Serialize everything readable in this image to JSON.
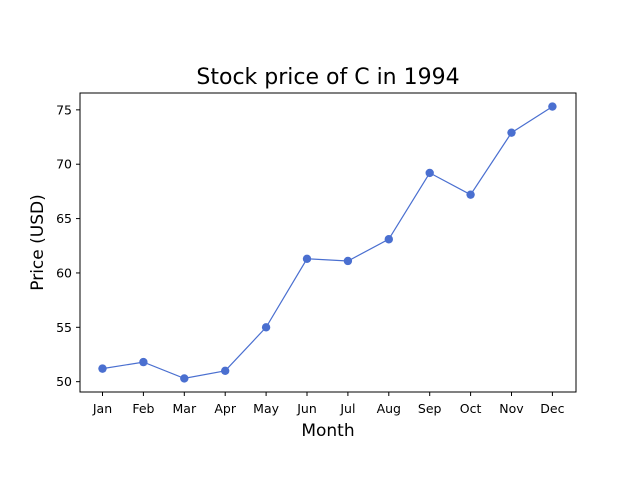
{
  "chart_data": {
    "type": "line",
    "title": "Stock price of C in 1994",
    "xlabel": "Month",
    "ylabel": "Price (USD)",
    "categories": [
      "Jan",
      "Feb",
      "Mar",
      "Apr",
      "May",
      "Jun",
      "Jul",
      "Aug",
      "Sep",
      "Oct",
      "Nov",
      "Dec"
    ],
    "series": [
      {
        "values": [
          51.2,
          51.8,
          50.3,
          51.0,
          55.0,
          61.3,
          61.1,
          63.1,
          69.2,
          67.2,
          72.9,
          75.3
        ]
      }
    ],
    "yticks": [
      50,
      55,
      60,
      65,
      70,
      75
    ],
    "ylim": [
      49.05,
      76.55
    ],
    "grid": false,
    "legend": "none",
    "colors": {
      "line": "#4a6fd0",
      "marker": "#4a6fd0"
    }
  }
}
